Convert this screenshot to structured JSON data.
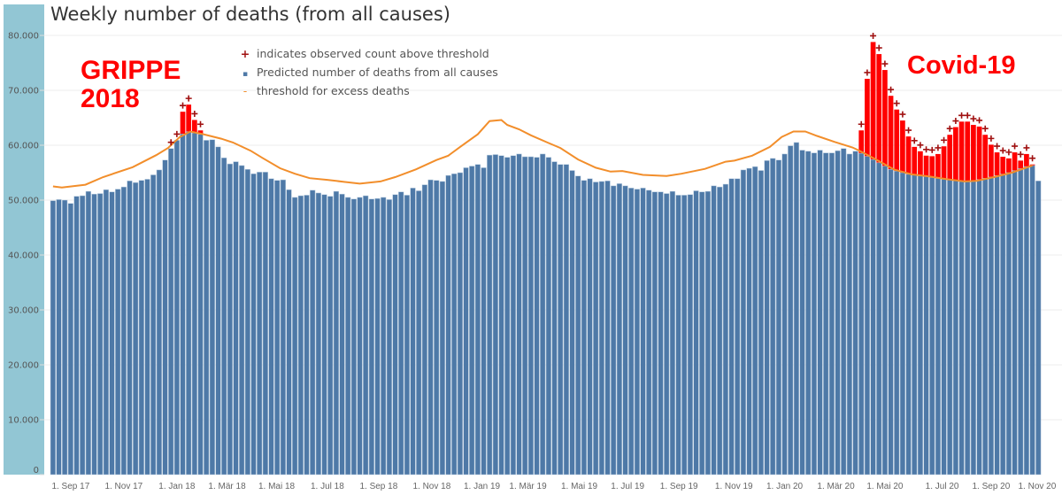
{
  "colors": {
    "band": "#92c6d4",
    "predicted": "#4e79a7",
    "excess": "#ff0000",
    "threshold": "#f28e2b",
    "plus": "#a01010",
    "grid": "#ececec"
  },
  "chart_data": {
    "type": "bar",
    "title": "Weekly number of deaths (from all causes)",
    "xlabel": "",
    "ylabel": "",
    "ylim": [
      0,
      80000
    ],
    "grid": true,
    "legend_position": "top-center",
    "yticks": [
      {
        "value": 0,
        "label": "0"
      },
      {
        "value": 10000,
        "label": "10.000"
      },
      {
        "value": 20000,
        "label": "20.000"
      },
      {
        "value": 30000,
        "label": "30.000"
      },
      {
        "value": 40000,
        "label": "40.000"
      },
      {
        "value": 50000,
        "label": "50.000"
      },
      {
        "value": 60000,
        "label": "60.000"
      },
      {
        "value": 70000,
        "label": "70.000"
      },
      {
        "value": 80000,
        "label": "80.000"
      }
    ],
    "xticks": [
      {
        "week": 3,
        "label": "1. Sep 17"
      },
      {
        "week": 12,
        "label": "1. Nov 17"
      },
      {
        "week": 21,
        "label": "1. Jan 18"
      },
      {
        "week": 29.5,
        "label": "1. Mär 18"
      },
      {
        "week": 37.9,
        "label": "1. Mai 18"
      },
      {
        "week": 46.5,
        "label": "1. Jul 18"
      },
      {
        "week": 55.2,
        "label": "1. Sep 18"
      },
      {
        "week": 64.2,
        "label": "1. Nov 18"
      },
      {
        "week": 72.7,
        "label": "1. Jan 19"
      },
      {
        "week": 80.5,
        "label": "1. Mär 19"
      },
      {
        "week": 89.2,
        "label": "1. Mai 19"
      },
      {
        "week": 97.4,
        "label": "1. Jul 19"
      },
      {
        "week": 106.1,
        "label": "1. Sep 19"
      },
      {
        "week": 115.4,
        "label": "1. Nov 19"
      },
      {
        "week": 124,
        "label": "1. Jan 20"
      },
      {
        "week": 132.7,
        "label": "1. Mär 20"
      },
      {
        "week": 141,
        "label": "1. Mai 20"
      },
      {
        "week": 150.7,
        "label": "1. Jul 20"
      },
      {
        "week": 159,
        "label": "1. Sep 20"
      },
      {
        "week": 166.8,
        "label": "1. Nov 20"
      }
    ],
    "legend": [
      {
        "symbol": "+",
        "label": "indicates observed count above threshold"
      },
      {
        "symbol": "▪",
        "label": "Predicted number of deaths from all causes"
      },
      {
        "symbol": "-",
        "label": "threshold for excess deaths"
      }
    ],
    "observed": [
      49900,
      50100,
      50000,
      49400,
      50700,
      50800,
      51600,
      51100,
      51200,
      51900,
      51500,
      52000,
      52400,
      53500,
      53200,
      53600,
      53800,
      54600,
      55500,
      57300,
      59400,
      60900,
      66100,
      67400,
      64600,
      62700,
      60900,
      61000,
      59700,
      57700,
      56600,
      57000,
      56300,
      55600,
      54800,
      55100,
      55100,
      53900,
      53600,
      53700,
      51900,
      50500,
      50800,
      50900,
      51800,
      51300,
      51000,
      50700,
      51600,
      51100,
      50500,
      50200,
      50500,
      50800,
      50200,
      50300,
      50500,
      50100,
      51000,
      51500,
      50900,
      52200,
      51700,
      52800,
      53700,
      53600,
      53400,
      54500,
      54800,
      55000,
      55900,
      56200,
      56500,
      55900,
      58200,
      58300,
      58100,
      57800,
      58100,
      58400,
      57900,
      57900,
      57800,
      58400,
      57800,
      57000,
      56500,
      56500,
      55400,
      54400,
      53600,
      53900,
      53300,
      53400,
      53500,
      52600,
      53000,
      52600,
      52200,
      52000,
      52200,
      51800,
      51500,
      51500,
      51200,
      51600,
      50900,
      50900,
      51000,
      51700,
      51500,
      51600,
      52600,
      52400,
      52900,
      53900,
      53900,
      55500,
      55800,
      56100,
      55400,
      57200,
      57600,
      57300,
      58400,
      59900,
      60500,
      59100,
      58900,
      58600,
      59100,
      58600,
      58600,
      59000,
      59400,
      58400,
      58900,
      62700,
      72100,
      78800,
      76600,
      73700,
      69000,
      66500,
      64500,
      61600,
      59700,
      58900,
      58100,
      58000,
      58400,
      59800,
      61900,
      63300,
      64300,
      64300,
      63700,
      63400,
      61900,
      60100,
      58700,
      57900,
      57600,
      58700,
      57200,
      58400,
      56500,
      53500
    ],
    "threshold_knots": [
      [
        0,
        52500
      ],
      [
        1.5,
        52300
      ],
      [
        5.5,
        52800
      ],
      [
        8.5,
        54200
      ],
      [
        13.5,
        56000
      ],
      [
        17.5,
        58200
      ],
      [
        19.5,
        59500
      ],
      [
        21.5,
        61500
      ],
      [
        23.3,
        62500
      ],
      [
        25.5,
        62000
      ],
      [
        28.5,
        61200
      ],
      [
        30.5,
        60500
      ],
      [
        33.5,
        59000
      ],
      [
        35.5,
        57700
      ],
      [
        38.5,
        55800
      ],
      [
        41,
        54800
      ],
      [
        43.5,
        54000
      ],
      [
        46.5,
        53700
      ],
      [
        49.5,
        53300
      ],
      [
        52,
        53000
      ],
      [
        55.5,
        53400
      ],
      [
        58,
        54200
      ],
      [
        61.5,
        55600
      ],
      [
        65,
        57300
      ],
      [
        67,
        58100
      ],
      [
        69,
        59700
      ],
      [
        72,
        62000
      ],
      [
        74,
        64400
      ],
      [
        76,
        64600
      ],
      [
        77,
        63700
      ],
      [
        79,
        62900
      ],
      [
        81,
        61800
      ],
      [
        84,
        60400
      ],
      [
        86,
        59500
      ],
      [
        89,
        57400
      ],
      [
        92,
        55900
      ],
      [
        94.5,
        55200
      ],
      [
        96.5,
        55300
      ],
      [
        100,
        54600
      ],
      [
        104,
        54400
      ],
      [
        106.5,
        54800
      ],
      [
        110.5,
        55700
      ],
      [
        114,
        57000
      ],
      [
        115.5,
        57200
      ],
      [
        118.5,
        58100
      ],
      [
        121.5,
        59700
      ],
      [
        123.5,
        61500
      ],
      [
        125.5,
        62500
      ],
      [
        127.5,
        62500
      ],
      [
        129.5,
        61700
      ],
      [
        132.5,
        60600
      ],
      [
        135.5,
        59600
      ],
      [
        136.5,
        59100
      ],
      [
        139.5,
        57400
      ],
      [
        142.5,
        55600
      ],
      [
        145.5,
        54700
      ],
      [
        148.5,
        54300
      ],
      [
        151.5,
        53800
      ],
      [
        154.5,
        53400
      ],
      [
        156.5,
        53500
      ],
      [
        159.5,
        54200
      ],
      [
        162.5,
        55000
      ],
      [
        166,
        56300
      ]
    ],
    "above_threshold_weeks": [
      20,
      21,
      22,
      23,
      24,
      25,
      137,
      138,
      139,
      140,
      141,
      142,
      143,
      144,
      145,
      146,
      147,
      148,
      149,
      150,
      151,
      152,
      153,
      154,
      155,
      156,
      157,
      158,
      159,
      160,
      161,
      162,
      163,
      164,
      165,
      166
    ],
    "annotations": [
      {
        "text_line1": "GRIPPE",
        "text_line2": "2018"
      },
      {
        "text": "Covid-19"
      }
    ]
  }
}
